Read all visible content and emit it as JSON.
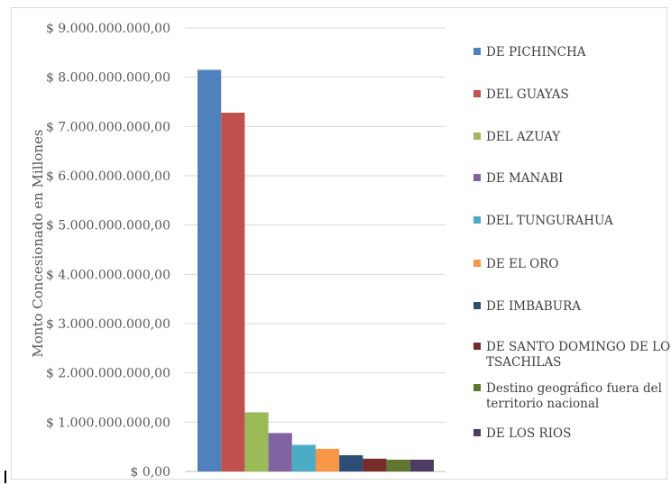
{
  "chart_data": {
    "type": "bar",
    "title": "",
    "xlabel": "",
    "ylabel": "Monto Concesionado en Millones",
    "ylim": [
      0,
      9000000000
    ],
    "yticks": [
      {
        "value": 0,
        "label": "$ 0,00"
      },
      {
        "value": 1000000000,
        "label": "$ 1.000.000.000,00"
      },
      {
        "value": 2000000000,
        "label": "$ 2.000.000.000,00"
      },
      {
        "value": 3000000000,
        "label": "$ 3.000.000.000,00"
      },
      {
        "value": 4000000000,
        "label": "$ 4.000.000.000,00"
      },
      {
        "value": 5000000000,
        "label": "$ 5.000.000.000,00"
      },
      {
        "value": 6000000000,
        "label": "$ 6.000.000.000,00"
      },
      {
        "value": 7000000000,
        "label": "$ 7.000.000.000,00"
      },
      {
        "value": 8000000000,
        "label": "$ 8.000.000.000,00"
      },
      {
        "value": 9000000000,
        "label": "$ 9.000.000.000,00"
      }
    ],
    "grid": true,
    "legend_position": "right",
    "series": [
      {
        "name": "DE PICHINCHA",
        "value": 8150000000,
        "color": "#4f81bd"
      },
      {
        "name": "DEL GUAYAS",
        "value": 7280000000,
        "color": "#c0504d"
      },
      {
        "name": "DEL AZUAY",
        "value": 1200000000,
        "color": "#9bbb59"
      },
      {
        "name": "DE MANABI",
        "value": 780000000,
        "color": "#8064a2"
      },
      {
        "name": "DEL TUNGURAHUA",
        "value": 540000000,
        "color": "#4bacc6"
      },
      {
        "name": "DE EL ORO",
        "value": 460000000,
        "color": "#f79646"
      },
      {
        "name": "DE IMBABURA",
        "value": 330000000,
        "color": "#2c4d75"
      },
      {
        "name": "DE SANTO DOMINGO DE LOS TSACHILAS",
        "legend_lines": [
          "DE SANTO DOMINGO DE LOS",
          "TSACHILAS"
        ],
        "value": 260000000,
        "color": "#772c2a"
      },
      {
        "name": "Destino geográfico fuera del territorio nacional",
        "legend_lines": [
          "Destino geográfico fuera del",
          "territorio nacional"
        ],
        "value": 240000000,
        "color": "#5f7530"
      },
      {
        "name": "DE LOS RIOS",
        "value": 240000000,
        "color": "#4d3b62"
      }
    ]
  }
}
